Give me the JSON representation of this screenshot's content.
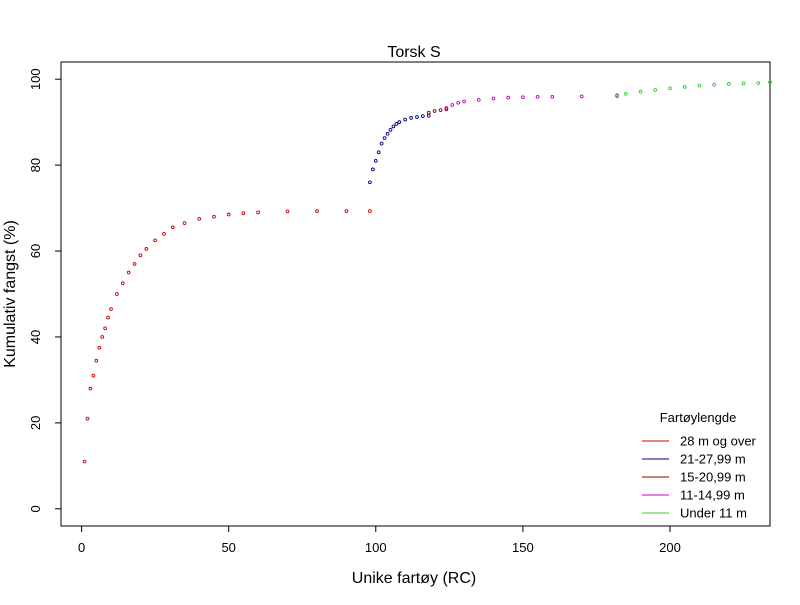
{
  "chart_data": {
    "type": "scatter",
    "title": "Torsk S",
    "xlabel": "Unike fartøy (RC)",
    "ylabel": "Kumulativ fangst (%)",
    "xlim": [
      -7,
      234
    ],
    "ylim": [
      -4,
      104
    ],
    "xticks": [
      0,
      50,
      100,
      150,
      200
    ],
    "yticks": [
      0,
      20,
      40,
      60,
      80,
      100
    ],
    "grid": false,
    "legend": {
      "title": "Fartøylengde",
      "position": "bottom-right"
    },
    "series": [
      {
        "name": "28 m og over",
        "color": "#cc0000",
        "x": [
          1,
          2,
          3,
          4,
          5,
          6,
          7,
          8,
          9,
          10,
          12,
          14,
          16,
          18,
          20,
          22,
          25,
          28,
          31,
          35,
          40,
          45,
          50,
          55,
          60,
          70,
          80,
          90,
          98
        ],
        "y": [
          11,
          21,
          28,
          31,
          34.5,
          37.5,
          40,
          42,
          44.5,
          46.5,
          50,
          52.5,
          55,
          57,
          59,
          60.5,
          62.5,
          64,
          65.5,
          66.5,
          67.5,
          68,
          68.5,
          68.8,
          69,
          69.2,
          69.3,
          69.3,
          69.3
        ]
      },
      {
        "name": "21-27,99 m",
        "color": "#00008b",
        "x": [
          98,
          99,
          100,
          101,
          102,
          103,
          104,
          105,
          106,
          107,
          108,
          110,
          112,
          114,
          116,
          118
        ],
        "y": [
          76,
          79,
          81,
          83,
          85,
          86.3,
          87.3,
          88.2,
          89,
          89.6,
          90,
          90.6,
          91,
          91.2,
          91.4,
          91.5
        ]
      },
      {
        "name": "15-20,99 m",
        "color": "#8b0000",
        "x": [
          118,
          120,
          122,
          124
        ],
        "y": [
          92.2,
          92.6,
          92.8,
          93
        ]
      },
      {
        "name": "11-14,99 m",
        "color": "#cc00cc",
        "x": [
          124,
          126,
          128,
          130,
          135,
          140,
          145,
          150,
          155,
          160,
          170,
          182
        ],
        "y": [
          93.3,
          94,
          94.5,
          94.8,
          95.2,
          95.5,
          95.7,
          95.8,
          95.9,
          95.9,
          96,
          96.1
        ]
      },
      {
        "name": "Under 11 m",
        "color": "#33cc33",
        "x": [
          182,
          185,
          190,
          195,
          200,
          205,
          210,
          215,
          220,
          225,
          230,
          234
        ],
        "y": [
          96.3,
          96.6,
          97.1,
          97.5,
          97.9,
          98.2,
          98.5,
          98.7,
          98.9,
          99,
          99.1,
          99.3
        ]
      }
    ]
  }
}
